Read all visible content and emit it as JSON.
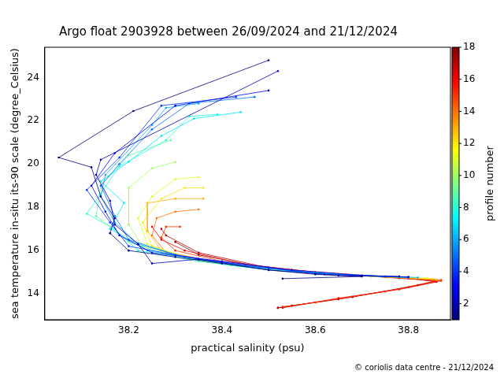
{
  "chart_data": {
    "type": "line",
    "title": "Argo float 2903928 between 26/09/2024 and 21/12/2024",
    "x_label": "practical salinity (psu)",
    "y_label": "sea temperature in-situ its-90 scale (degree_Celsius)",
    "source": "© coriolis data centre - 21/12/2024",
    "xlim": [
      38.02,
      38.89
    ],
    "xticks": [
      38.2,
      38.4,
      38.6,
      38.8
    ],
    "ylim": [
      12.8,
      25.4
    ],
    "yticks": [
      14,
      16,
      18,
      20,
      22,
      24
    ],
    "grid": false,
    "marker": "circle",
    "line_style": "solid",
    "colorbar": {
      "label": "profile number",
      "range": [
        1,
        18
      ],
      "ticks": [
        2,
        4,
        6,
        8,
        10,
        12,
        14,
        16,
        18
      ]
    },
    "series": [
      {
        "profile": 1,
        "x": [
          38.5,
          38.21,
          38.05,
          38.12,
          38.14,
          38.17,
          38.16,
          38.2,
          38.3,
          38.4,
          38.5,
          38.6,
          38.7,
          38.53
        ],
        "values": [
          24.8,
          22.45,
          20.3,
          19.85,
          18.5,
          17.5,
          16.8,
          16.0,
          15.7,
          15.4,
          15.1,
          14.9,
          14.8,
          14.7
        ]
      },
      {
        "profile": 2,
        "x": [
          38.52,
          38.14,
          38.13,
          38.16,
          38.17,
          38.22,
          38.25,
          38.35,
          38.5,
          38.65,
          38.78
        ],
        "values": [
          24.3,
          20.2,
          19.5,
          18.3,
          17.2,
          16.3,
          15.4,
          15.6,
          15.1,
          14.85,
          14.8
        ]
      },
      {
        "profile": 3,
        "x": [
          38.5,
          38.3,
          38.17,
          38.12,
          38.15,
          38.18,
          38.25,
          38.4,
          38.55,
          38.7,
          38.8
        ],
        "values": [
          23.4,
          22.7,
          20.5,
          19.0,
          17.8,
          16.7,
          15.9,
          15.5,
          15.1,
          14.85,
          14.78
        ]
      },
      {
        "profile": 4,
        "x": [
          38.43,
          38.27,
          38.18,
          38.11,
          38.16,
          38.2,
          38.35,
          38.5,
          38.62,
          38.8
        ],
        "values": [
          23.1,
          22.7,
          20.3,
          18.8,
          17.3,
          16.2,
          15.6,
          15.2,
          14.9,
          14.75
        ]
      },
      {
        "profile": 5,
        "x": [
          38.47,
          38.33,
          38.25,
          38.18,
          38.14,
          38.17,
          38.2,
          38.3,
          38.45,
          38.6,
          38.75
        ],
        "values": [
          23.1,
          22.8,
          21.6,
          20.0,
          19.0,
          17.6,
          16.5,
          15.8,
          15.3,
          14.95,
          14.8
        ]
      },
      {
        "profile": 6,
        "x": [
          38.35,
          38.28,
          38.25,
          38.15,
          38.14,
          38.17,
          38.22,
          38.32,
          38.48,
          38.65,
          38.82
        ],
        "values": [
          22.8,
          22.6,
          21.8,
          19.5,
          18.5,
          17.3,
          16.3,
          15.7,
          15.2,
          14.9,
          14.75
        ]
      },
      {
        "profile": 7,
        "x": [
          38.44,
          38.34,
          38.27,
          38.2,
          38.14,
          38.19,
          38.16,
          38.24,
          38.4,
          38.55,
          38.72
        ],
        "values": [
          22.4,
          22.1,
          21.3,
          20.1,
          19.2,
          18.2,
          17.0,
          16.0,
          15.4,
          15.05,
          14.82
        ]
      },
      {
        "profile": 8,
        "x": [
          38.39,
          38.33,
          38.28,
          38.18,
          38.11,
          38.17,
          38.22,
          38.35,
          38.5,
          38.68,
          38.8
        ],
        "values": [
          22.3,
          22.2,
          21.1,
          19.9,
          17.7,
          17.0,
          16.0,
          15.5,
          15.1,
          14.85,
          14.75
        ]
      },
      {
        "profile": 9,
        "x": [
          38.29,
          38.2,
          38.14,
          38.13,
          38.2,
          38.28,
          38.42,
          38.58,
          38.74
        ],
        "values": [
          21.1,
          20.4,
          19.0,
          17.6,
          16.4,
          15.8,
          15.3,
          15.0,
          14.8
        ]
      },
      {
        "profile": 10,
        "x": [
          38.3,
          38.25,
          38.2,
          38.2,
          38.23,
          38.32,
          38.48,
          38.65,
          38.8
        ],
        "values": [
          20.1,
          19.8,
          18.9,
          17.2,
          16.2,
          15.7,
          15.2,
          14.9,
          14.77
        ]
      },
      {
        "profile": 11,
        "x": [
          38.35,
          38.3,
          38.25,
          38.22,
          38.24,
          38.33,
          38.5,
          38.68,
          38.84
        ],
        "values": [
          19.4,
          19.3,
          18.5,
          17.5,
          16.3,
          15.6,
          15.15,
          14.85,
          14.72
        ]
      },
      {
        "profile": 12,
        "x": [
          38.36,
          38.32,
          38.27,
          38.23,
          38.25,
          38.35,
          38.52,
          38.7,
          38.85
        ],
        "values": [
          18.9,
          18.9,
          18.4,
          17.3,
          16.2,
          15.5,
          15.1,
          14.83,
          14.7
        ]
      },
      {
        "profile": 13,
        "x": [
          38.36,
          38.3,
          38.24,
          38.24,
          38.27,
          38.4,
          38.55,
          38.72,
          38.86
        ],
        "values": [
          18.4,
          18.4,
          18.2,
          16.9,
          16.0,
          15.4,
          15.05,
          14.8,
          14.65
        ]
      },
      {
        "profile": 14,
        "x": [
          38.35,
          38.3,
          38.26,
          38.25,
          38.28,
          38.42,
          38.58,
          38.75,
          38.87
        ],
        "values": [
          17.9,
          17.8,
          17.5,
          16.7,
          15.9,
          15.35,
          15.0,
          14.78,
          14.65
        ]
      },
      {
        "profile": 15,
        "x": [
          38.31,
          38.28,
          38.27,
          38.3,
          38.4,
          38.55,
          38.72,
          38.86,
          38.75,
          38.6,
          38.53
        ],
        "values": [
          17.1,
          17.1,
          16.6,
          16.0,
          15.5,
          15.1,
          14.82,
          14.6,
          14.1,
          13.6,
          13.4
        ]
      },
      {
        "profile": 16,
        "x": [
          38.25,
          38.27,
          38.32,
          38.45,
          38.6,
          38.75,
          38.87,
          38.78,
          38.65,
          38.53
        ],
        "values": [
          17.1,
          16.5,
          16.0,
          15.35,
          15.0,
          14.8,
          14.6,
          14.2,
          13.8,
          13.35
        ]
      },
      {
        "profile": 17,
        "x": [
          38.27,
          38.28,
          38.35,
          38.5,
          38.65,
          38.8,
          38.86,
          38.8,
          38.65,
          38.52
        ],
        "values": [
          17.0,
          16.7,
          15.9,
          15.2,
          14.9,
          14.72,
          14.55,
          14.3,
          13.75,
          13.35
        ]
      },
      {
        "profile": 18,
        "x": [
          38.3,
          38.35,
          38.47,
          38.62,
          38.78,
          38.86,
          38.82,
          38.68,
          38.55,
          38.52
        ],
        "values": [
          16.4,
          15.8,
          15.3,
          14.95,
          14.72,
          14.6,
          14.4,
          13.85,
          13.45,
          13.35
        ]
      }
    ]
  }
}
